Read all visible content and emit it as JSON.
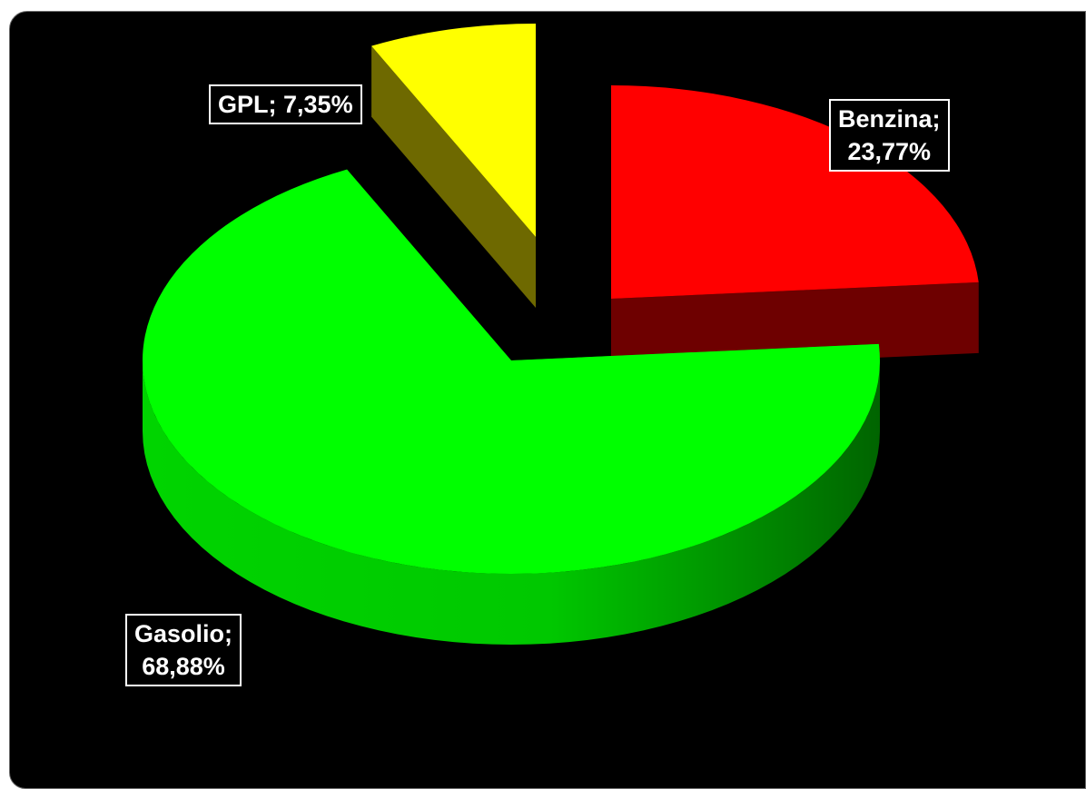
{
  "chart_data": {
    "type": "pie",
    "style": "3d-exploded",
    "slices": [
      {
        "name": "Benzina",
        "value": 23.77,
        "label_name": "Benzina;",
        "label_value": "23,77%",
        "color": "#ff0000",
        "side_color": "#6e0000"
      },
      {
        "name": "Gasolio",
        "value": 68.88,
        "label_name": "Gasolio;",
        "label_value": "68,88%",
        "color": "#00ff00",
        "side_color": "#009400"
      },
      {
        "name": "GPL",
        "value": 7.35,
        "label_name": "GPL;",
        "label_value": "7,35%",
        "color": "#ffff00",
        "side_color": "#6e6900"
      }
    ],
    "background": "#000000",
    "legend": "none"
  }
}
